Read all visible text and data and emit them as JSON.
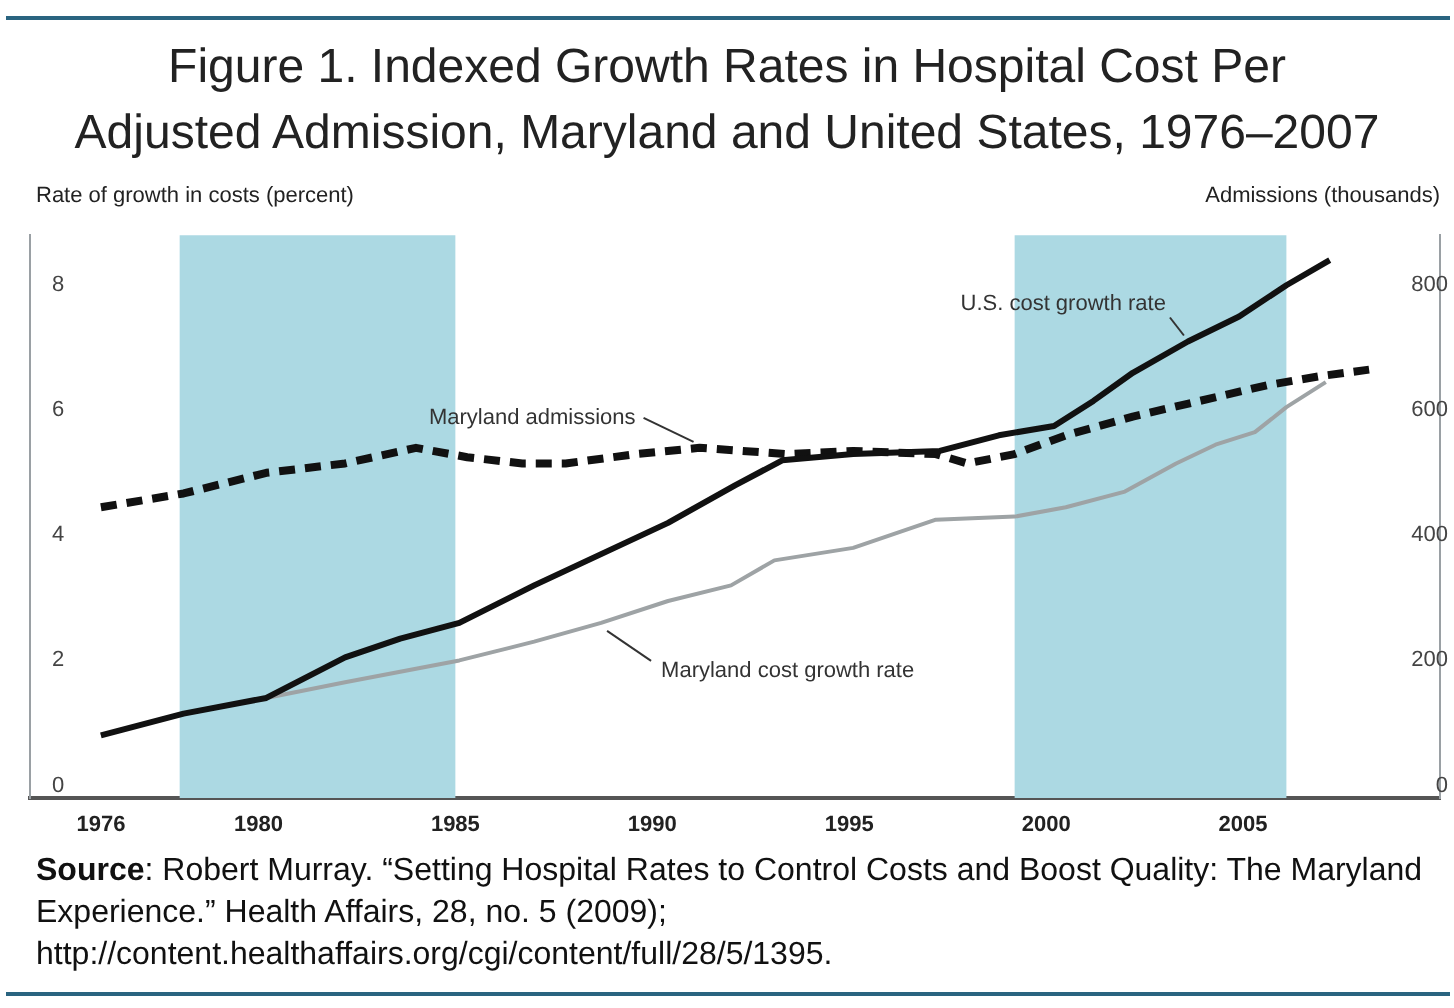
{
  "chart_data": {
    "type": "line",
    "title": "Figure 1. Indexed Growth Rates in Hospital Cost Per Adjusted Admission, Maryland and United States, 1976–2007",
    "ylabel": "Rate of growth in costs (percent)",
    "y2label": "Admissions (thousands)",
    "annotations": [
      "Source: Robert Murray. “Setting Hospital Rates to Control Costs and Boost Quality: The Maryland Experience.” Health Affairs, 28, no. 5 (2009); http://content.healthaffairs.org/cgi/content/full/28/5/1395."
    ],
    "xlim": [
      1974.2,
      2010
    ],
    "xticks": [
      1976,
      1980,
      1985,
      1990,
      1995,
      2000,
      2005
    ],
    "ylim": [
      -0.2,
      8.8
    ],
    "yticks": [
      0,
      2,
      4,
      6,
      8
    ],
    "y2lim": [
      -20,
      880
    ],
    "y2ticks": [
      0,
      200,
      400,
      600,
      800
    ],
    "bands": [
      {
        "axis": "x",
        "from": 1978,
        "to": 1985,
        "color": "#acd9e3"
      },
      {
        "axis": "x",
        "from": 1999.2,
        "to": 2006.1,
        "color": "#acd9e3"
      }
    ],
    "grid": false,
    "legend": false,
    "marker": "none",
    "line_style": "solid",
    "series": [
      {
        "name": "U.S. cost growth rate",
        "color": "#111111",
        "x": [
          1976,
          1978.1,
          1980.2,
          1982.2,
          1983.6,
          1985.1,
          1987,
          1988.7,
          1990.4,
          1992.1,
          1993.3,
          1995.1,
          1997.3,
          1998.8,
          2000.2,
          2001.2,
          2002.2,
          2003.6,
          2004.9,
          2006.1,
          2007.2
        ],
        "values": [
          0.8,
          1.15,
          1.4,
          2.05,
          2.35,
          2.6,
          3.2,
          3.7,
          4.2,
          4.8,
          5.2,
          5.3,
          5.35,
          5.6,
          5.75,
          6.15,
          6.6,
          7.1,
          7.5,
          8.0,
          8.4
        ]
      },
      {
        "name": "Maryland cost growth rate",
        "color": "#9ea3a5",
        "x": [
          1976,
          1978.1,
          1980.2,
          1982.2,
          1985.1,
          1987,
          1988.7,
          1990.4,
          1992,
          1993.1,
          1995.1,
          1997.2,
          1999.2,
          2000.5,
          2002,
          2003.3,
          2004.3,
          2005.3,
          2006.1,
          2007.1
        ],
        "values": [
          0.8,
          1.15,
          1.4,
          1.65,
          2.0,
          2.3,
          2.6,
          2.95,
          3.2,
          3.6,
          3.8,
          4.25,
          4.3,
          4.45,
          4.7,
          5.15,
          5.45,
          5.65,
          6.05,
          6.45
        ]
      },
      {
        "name": "Maryland admissions",
        "color": "#111111",
        "axis": "y2",
        "line_style": "dashed",
        "x": [
          1976,
          1978.1,
          1980.2,
          1982.2,
          1984,
          1985.3,
          1986.7,
          1987.8,
          1989.6,
          1991.2,
          1993.4,
          1995.1,
          1997.2,
          1998,
          1999.2,
          2000.5,
          2002.2,
          2003.9,
          2005.6,
          2007,
          2008.2
        ],
        "values": [
          445,
          467,
          500,
          515,
          540,
          525,
          515,
          515,
          530,
          540,
          530,
          535,
          530,
          515,
          530,
          560,
          590,
          615,
          640,
          655,
          665
        ]
      }
    ]
  }
}
